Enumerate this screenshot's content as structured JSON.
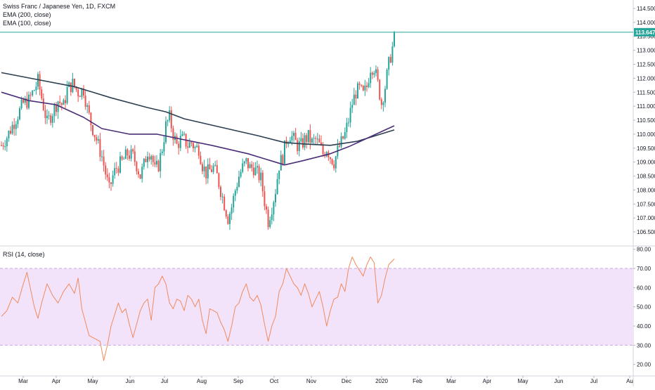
{
  "legend": {
    "title": "Swiss Franc / Japanese Yen, 1D, FXCM",
    "ema200": "EMA (200, close)",
    "ema100": "EMA (100, close)",
    "rsi": "RSI (14, close)"
  },
  "colors": {
    "up": "#26a69a",
    "down": "#ef5350",
    "ema200": "#2c3e50",
    "ema100": "#4a2f78",
    "rsi_line": "#f08a5d",
    "rsi_band": "#f2e3fb",
    "rsi_band_border": "#c9a3e3",
    "last_price": "#26a69a"
  },
  "chart_data": [
    {
      "type": "candlestick",
      "symbol": "Swiss Franc / Japanese Yen",
      "ylim": [
        106.0,
        114.8
      ],
      "y_ticks": [
        "114.500",
        "114.000",
        "113.500",
        "113.000",
        "112.500",
        "112.000",
        "111.500",
        "111.000",
        "110.500",
        "110.000",
        "109.500",
        "109.000",
        "108.500",
        "108.000",
        "107.500",
        "107.000",
        "106.500"
      ],
      "x_ticks": [
        "Mar",
        "Apr",
        "May",
        "Jun",
        "Jul",
        "Aug",
        "Sep",
        "Oct",
        "Nov",
        "Dec",
        "2020",
        "Feb",
        "Mar",
        "Apr",
        "May",
        "Jun",
        "Jul",
        "Au"
      ],
      "last_price": 113.647,
      "last_price_label": "113.647",
      "price_path": [
        [
          0,
          109.6
        ],
        [
          3,
          109.9
        ],
        [
          6,
          110.3
        ],
        [
          9,
          110.7
        ],
        [
          12,
          111.1
        ],
        [
          15,
          111.2
        ],
        [
          18,
          111.6
        ],
        [
          20,
          111.9
        ],
        [
          22,
          111.3
        ],
        [
          25,
          110.4
        ],
        [
          28,
          110.8
        ],
        [
          31,
          111.2
        ],
        [
          34,
          111.0
        ],
        [
          36,
          111.6
        ],
        [
          39,
          111.8
        ],
        [
          42,
          111.5
        ],
        [
          45,
          111.6
        ],
        [
          47,
          110.9
        ],
        [
          49,
          110.4
        ],
        [
          51,
          110.0
        ],
        [
          53,
          109.6
        ],
        [
          55,
          109.2
        ],
        [
          57,
          108.6
        ],
        [
          59,
          108.0
        ],
        [
          61,
          108.5
        ],
        [
          63,
          108.8
        ],
        [
          66,
          109.0
        ],
        [
          69,
          109.3
        ],
        [
          72,
          109.2
        ],
        [
          74,
          108.9
        ],
        [
          76,
          108.5
        ],
        [
          78,
          108.9
        ],
        [
          80,
          109.4
        ],
        [
          82,
          109.3
        ],
        [
          84,
          108.7
        ],
        [
          86,
          108.9
        ],
        [
          88,
          109.5
        ],
        [
          90,
          110.3
        ],
        [
          92,
          110.6
        ],
        [
          94,
          110.0
        ],
        [
          96,
          109.6
        ],
        [
          98,
          109.8
        ],
        [
          100,
          109.8
        ],
        [
          102,
          109.6
        ],
        [
          104,
          109.7
        ],
        [
          106,
          109.5
        ],
        [
          108,
          109.5
        ],
        [
          110,
          108.9
        ],
        [
          112,
          108.6
        ],
        [
          114,
          108.7
        ],
        [
          116,
          108.8
        ],
        [
          118,
          108.5
        ],
        [
          120,
          108.0
        ],
        [
          122,
          107.5
        ],
        [
          124,
          107.0
        ],
        [
          126,
          107.4
        ],
        [
          128,
          108.0
        ],
        [
          130,
          108.5
        ],
        [
          132,
          108.8
        ],
        [
          134,
          109.0
        ],
        [
          136,
          108.8
        ],
        [
          138,
          108.8
        ],
        [
          140,
          108.6
        ],
        [
          142,
          108.4
        ],
        [
          144,
          107.6
        ],
        [
          146,
          106.9
        ],
        [
          148,
          107.4
        ],
        [
          150,
          108.0
        ],
        [
          152,
          108.9
        ],
        [
          154,
          109.2
        ],
        [
          156,
          109.8
        ],
        [
          158,
          110.0
        ],
        [
          160,
          109.8
        ],
        [
          162,
          109.6
        ],
        [
          164,
          109.6
        ],
        [
          166,
          109.8
        ],
        [
          168,
          109.9
        ],
        [
          170,
          109.7
        ],
        [
          172,
          109.8
        ],
        [
          174,
          109.6
        ],
        [
          176,
          109.3
        ],
        [
          178,
          109.5
        ],
        [
          180,
          109.2
        ],
        [
          182,
          109.0
        ],
        [
          184,
          109.4
        ],
        [
          186,
          109.7
        ],
        [
          188,
          110.0
        ],
        [
          190,
          110.5
        ],
        [
          192,
          111.1
        ],
        [
          194,
          111.5
        ],
        [
          196,
          111.6
        ],
        [
          198,
          111.4
        ],
        [
          200,
          111.7
        ],
        [
          202,
          112.4
        ],
        [
          204,
          112.4
        ],
        [
          206,
          111.8
        ],
        [
          208,
          111.1
        ],
        [
          210,
          111.7
        ],
        [
          212,
          112.5
        ],
        [
          214,
          113.1
        ],
        [
          215,
          113.647
        ]
      ],
      "ema200": [
        [
          0,
          112.2
        ],
        [
          20,
          111.95
        ],
        [
          40,
          111.7
        ],
        [
          60,
          111.3
        ],
        [
          80,
          110.95
        ],
        [
          90,
          110.8
        ],
        [
          100,
          110.55
        ],
        [
          120,
          110.25
        ],
        [
          140,
          109.95
        ],
        [
          155,
          109.7
        ],
        [
          165,
          109.65
        ],
        [
          180,
          109.6
        ],
        [
          195,
          109.75
        ],
        [
          205,
          109.95
        ],
        [
          210,
          110.05
        ],
        [
          215,
          110.15
        ]
      ],
      "ema100": [
        [
          0,
          111.5
        ],
        [
          15,
          111.2
        ],
        [
          30,
          111.05
        ],
        [
          45,
          110.6
        ],
        [
          55,
          110.2
        ],
        [
          70,
          110.0
        ],
        [
          85,
          110.0
        ],
        [
          100,
          109.8
        ],
        [
          115,
          109.6
        ],
        [
          135,
          109.3
        ],
        [
          155,
          108.9
        ],
        [
          165,
          109.05
        ],
        [
          180,
          109.3
        ],
        [
          190,
          109.55
        ],
        [
          200,
          109.85
        ],
        [
          210,
          110.15
        ],
        [
          215,
          110.3
        ]
      ]
    },
    {
      "type": "line",
      "title": "RSI (14, close)",
      "ylim": [
        14,
        81
      ],
      "y_ticks": [
        "80.00",
        "70.00",
        "60.00",
        "50.00",
        "40.00",
        "30.00",
        "20.00"
      ],
      "band": [
        30,
        70
      ],
      "values": [
        [
          0,
          45
        ],
        [
          3,
          48
        ],
        [
          6,
          55
        ],
        [
          9,
          52
        ],
        [
          12,
          62
        ],
        [
          14,
          68
        ],
        [
          16,
          59
        ],
        [
          18,
          50
        ],
        [
          20,
          44
        ],
        [
          22,
          52
        ],
        [
          25,
          62
        ],
        [
          28,
          56
        ],
        [
          31,
          52
        ],
        [
          34,
          58
        ],
        [
          37,
          62
        ],
        [
          40,
          57
        ],
        [
          42,
          65
        ],
        [
          44,
          49
        ],
        [
          46,
          42
        ],
        [
          48,
          35
        ],
        [
          50,
          34
        ],
        [
          52,
          33
        ],
        [
          54,
          32
        ],
        [
          56,
          22
        ],
        [
          58,
          30
        ],
        [
          60,
          40
        ],
        [
          62,
          46
        ],
        [
          64,
          52
        ],
        [
          66,
          47
        ],
        [
          68,
          49
        ],
        [
          70,
          41
        ],
        [
          72,
          34
        ],
        [
          74,
          41
        ],
        [
          76,
          48
        ],
        [
          78,
          52
        ],
        [
          80,
          54
        ],
        [
          82,
          43
        ],
        [
          84,
          60
        ],
        [
          86,
          62
        ],
        [
          88,
          66
        ],
        [
          90,
          62
        ],
        [
          92,
          52
        ],
        [
          94,
          49
        ],
        [
          96,
          54
        ],
        [
          98,
          53
        ],
        [
          100,
          48
        ],
        [
          102,
          56
        ],
        [
          104,
          54
        ],
        [
          106,
          50
        ],
        [
          108,
          54
        ],
        [
          110,
          43
        ],
        [
          112,
          36
        ],
        [
          114,
          49
        ],
        [
          116,
          48
        ],
        [
          118,
          47
        ],
        [
          120,
          42
        ],
        [
          122,
          38
        ],
        [
          124,
          32
        ],
        [
          126,
          40
        ],
        [
          128,
          50
        ],
        [
          130,
          52
        ],
        [
          132,
          58
        ],
        [
          134,
          62
        ],
        [
          136,
          55
        ],
        [
          138,
          53
        ],
        [
          140,
          56
        ],
        [
          142,
          51
        ],
        [
          144,
          41
        ],
        [
          146,
          32
        ],
        [
          148,
          40
        ],
        [
          150,
          45
        ],
        [
          152,
          58
        ],
        [
          154,
          62
        ],
        [
          156,
          70
        ],
        [
          158,
          66
        ],
        [
          160,
          62
        ],
        [
          162,
          60
        ],
        [
          164,
          56
        ],
        [
          166,
          62
        ],
        [
          168,
          57
        ],
        [
          170,
          50
        ],
        [
          172,
          54
        ],
        [
          174,
          58
        ],
        [
          176,
          50
        ],
        [
          178,
          40
        ],
        [
          180,
          48
        ],
        [
          182,
          54
        ],
        [
          184,
          55
        ],
        [
          186,
          62
        ],
        [
          188,
          58
        ],
        [
          190,
          70
        ],
        [
          192,
          76
        ],
        [
          194,
          72
        ],
        [
          196,
          69
        ],
        [
          198,
          66
        ],
        [
          200,
          72
        ],
        [
          202,
          76
        ],
        [
          204,
          73
        ],
        [
          206,
          52
        ],
        [
          208,
          56
        ],
        [
          210,
          65
        ],
        [
          212,
          72
        ],
        [
          215,
          75
        ]
      ]
    }
  ]
}
